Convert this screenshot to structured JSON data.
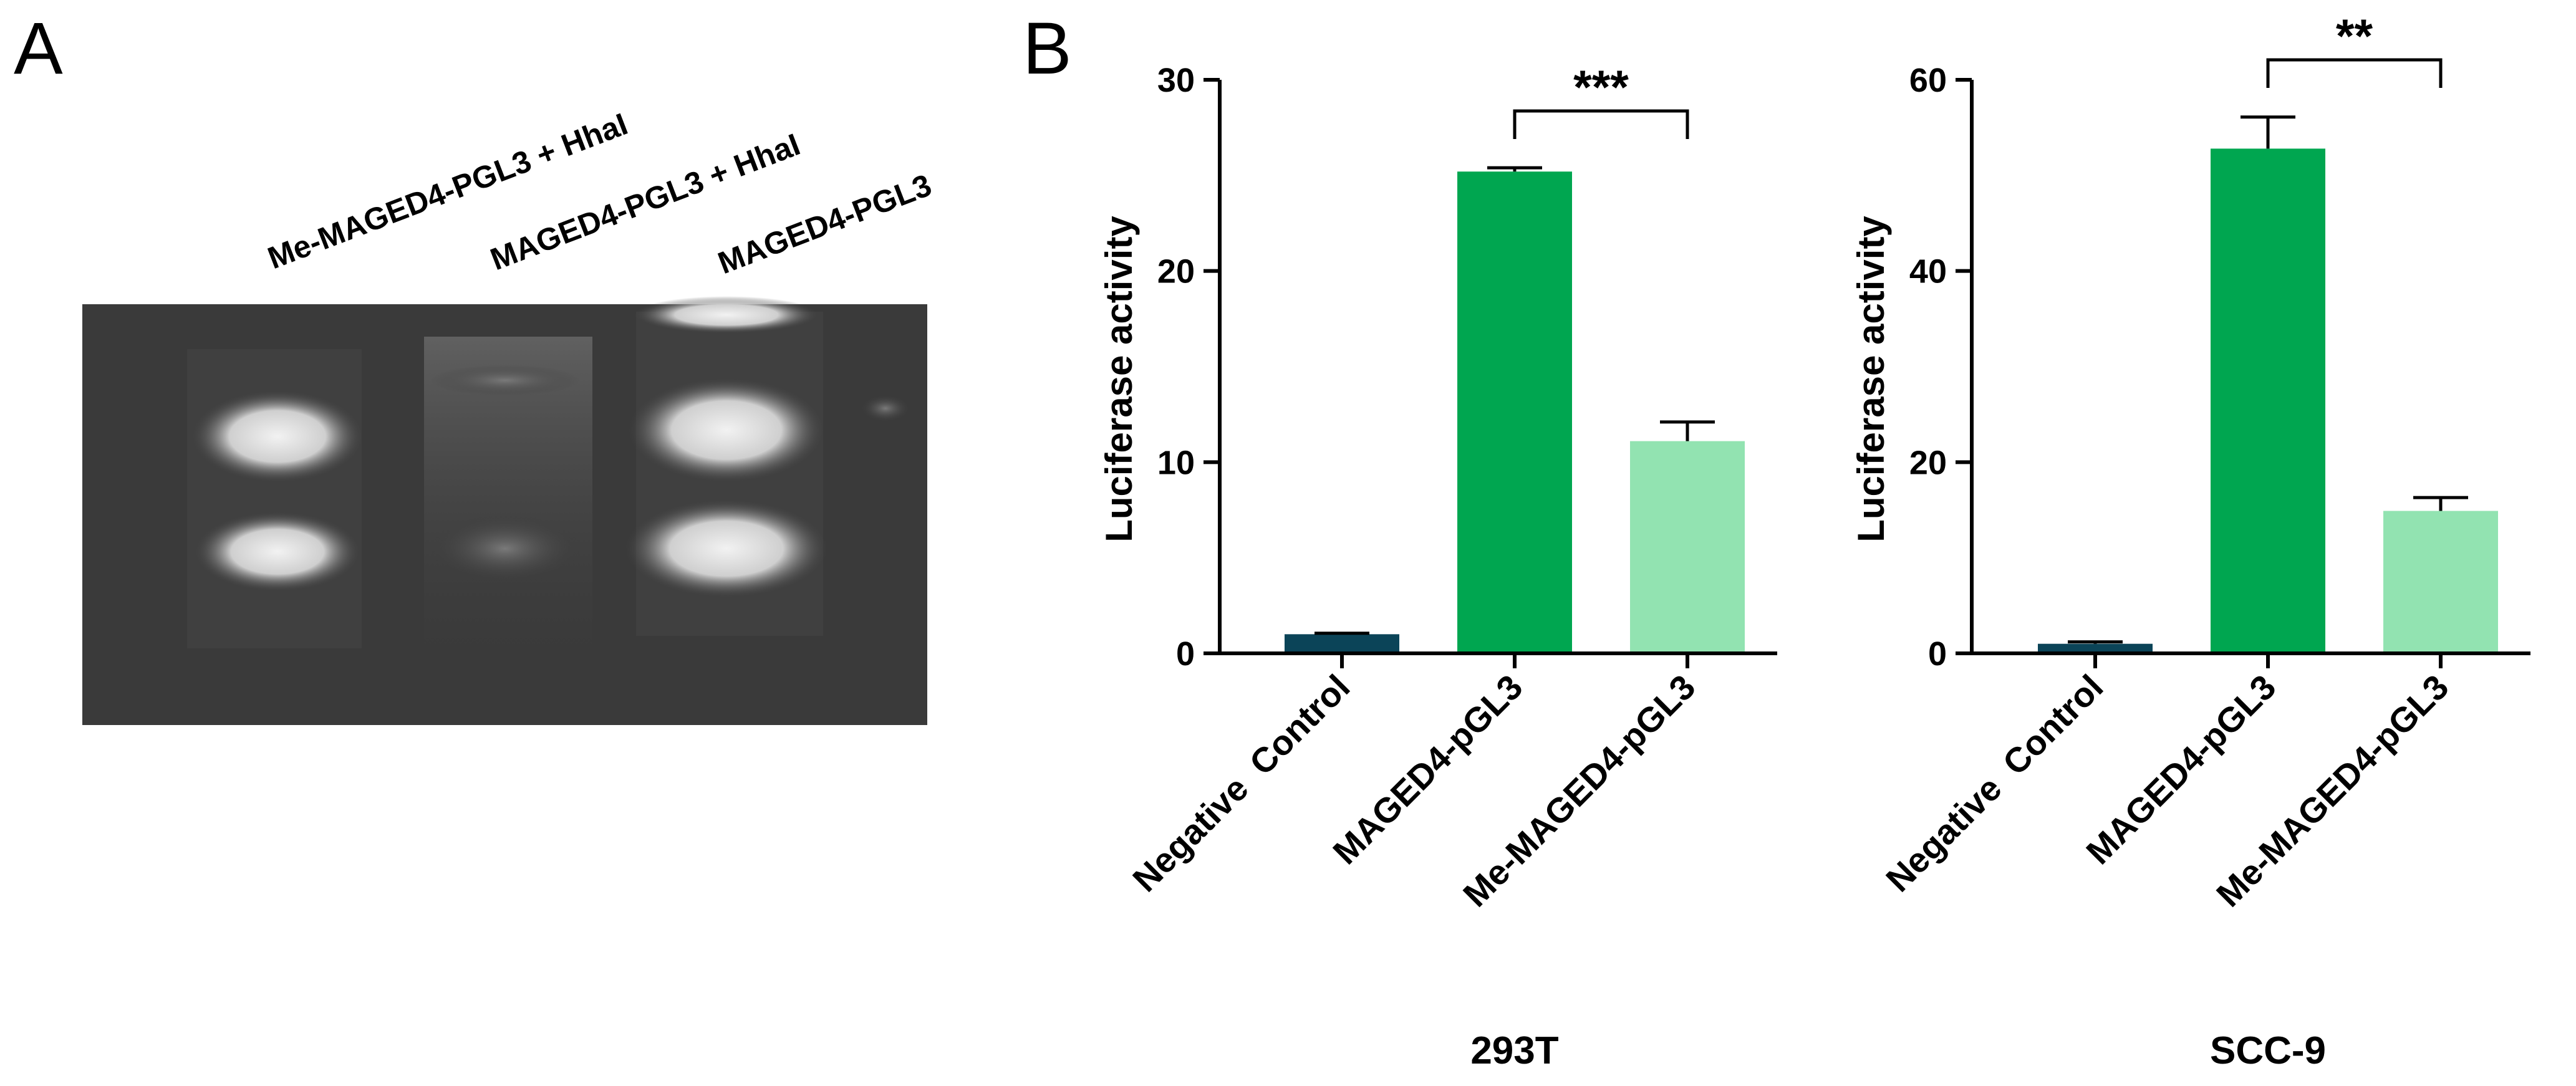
{
  "panel_a": {
    "letter": "A",
    "lanes": [
      "Me-MAGED4-PGL3 + HhaI",
      "MAGED4-PGL3 + HhaI",
      "MAGED4-PGL3"
    ]
  },
  "panel_b": {
    "letter": "B"
  },
  "chart_data": [
    {
      "type": "bar",
      "title": "293T",
      "xlabel": "",
      "ylabel": "Luciferase activity",
      "categories": [
        "Negative  Control",
        "MAGED4-pGL3",
        "Me-MAGED4-pGL3"
      ],
      "values": [
        1.0,
        25.2,
        11.1
      ],
      "errors": [
        0.05,
        0.2,
        1.0
      ],
      "colors": [
        "#0b4458",
        "#00a650",
        "#92e3b1"
      ],
      "ylim": [
        0,
        30
      ],
      "yticks": [
        "0",
        "10",
        "20",
        "30"
      ],
      "significance": {
        "from": 1,
        "to": 2,
        "label": "***"
      }
    },
    {
      "type": "bar",
      "title": "SCC-9",
      "xlabel": "",
      "ylabel": "Luciferase activity",
      "categories": [
        "Negative  Control",
        "MAGED4-pGL3",
        "Me-MAGED4-pGL3"
      ],
      "values": [
        1.0,
        52.8,
        14.9
      ],
      "errors": [
        0.2,
        3.3,
        1.4
      ],
      "colors": [
        "#0b4458",
        "#00a650",
        "#92e3b1"
      ],
      "ylim": [
        0,
        60
      ],
      "yticks": [
        "0",
        "20",
        "40",
        "60"
      ],
      "significance": {
        "from": 1,
        "to": 2,
        "label": "**"
      }
    }
  ]
}
